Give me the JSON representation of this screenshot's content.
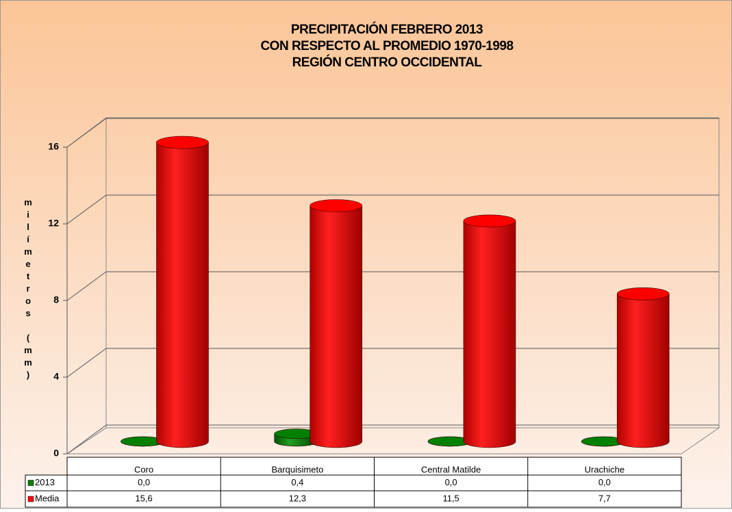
{
  "chart_data": {
    "type": "bar3d",
    "title": [
      "PRECIPITACIÓN FEBRERO 2013",
      "CON RESPECTO AL PROMEDIO 1970-1998",
      "REGIÓN CENTRO OCCIDENTAL"
    ],
    "y_label": "milímetros (mm)",
    "categories": [
      "Coro",
      "Barquisimeto",
      "Central Matilde",
      "Urachiche"
    ],
    "series": [
      {
        "name": "2013",
        "color": "#008000",
        "values": [
          0,
          0.4,
          0,
          0
        ],
        "value_labels": [
          "0,0",
          "0,4",
          "0,0",
          "0,0"
        ]
      },
      {
        "name": "Media",
        "color": "#ff0000",
        "values": [
          15.6,
          12.3,
          11.5,
          7.7
        ],
        "value_labels": [
          "15,6",
          "12,3",
          "11,5",
          "7,7"
        ]
      }
    ],
    "ylim": [
      0,
      16
    ],
    "yticks": [
      0,
      4,
      8,
      12,
      16
    ],
    "grid": true
  }
}
